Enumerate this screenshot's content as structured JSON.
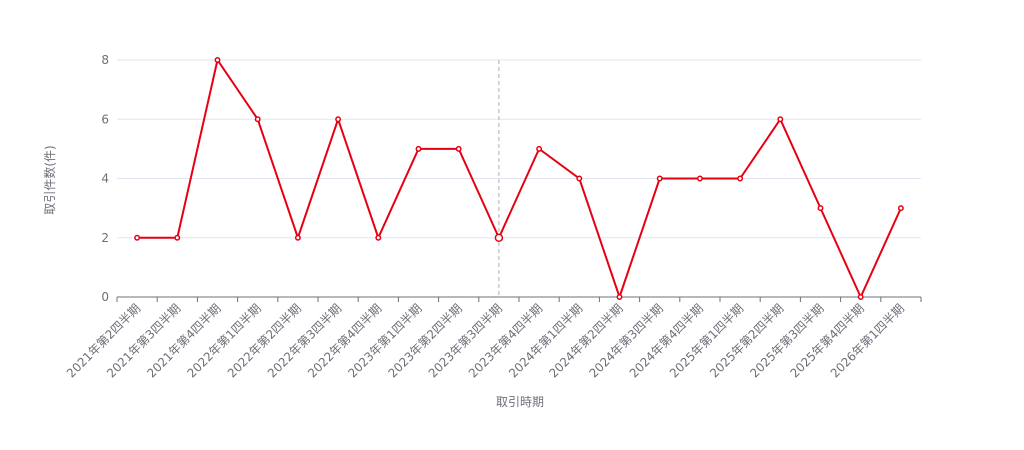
{
  "chart_data": {
    "type": "line",
    "x_label": "取引時期",
    "y_label": "取引件数(件)",
    "categories": [
      "2021年第2四半期",
      "2021年第3四半期",
      "2021年第4四半期",
      "2022年第1四半期",
      "2022年第2四半期",
      "2022年第3四半期",
      "2022年第4四半期",
      "2023年第1四半期",
      "2023年第2四半期",
      "2023年第3四半期",
      "2023年第4四半期",
      "2024年第1四半期",
      "2024年第2四半期",
      "2024年第3四半期",
      "2024年第4四半期",
      "2025年第1四半期",
      "2025年第2四半期",
      "2025年第3四半期",
      "2025年第4四半期",
      "2026年第1四半期"
    ],
    "values": [
      2,
      2,
      8,
      6,
      2,
      6,
      2,
      5,
      5,
      2,
      5,
      4,
      0,
      4,
      4,
      4,
      6,
      3,
      0,
      3
    ],
    "color": "#e60012",
    "ylim": [
      0,
      8
    ],
    "yticks": [
      0,
      2,
      4,
      6,
      8
    ],
    "grid": true
  }
}
